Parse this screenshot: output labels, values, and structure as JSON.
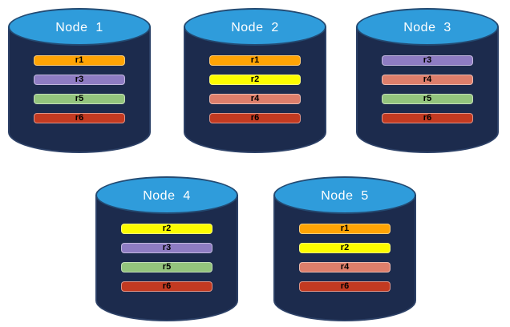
{
  "diagram": {
    "kind": "database-replica-distribution",
    "colors": {
      "cylinder_body": "#1c2b4d",
      "cylinder_body_stroke": "#2c4066",
      "cylinder_top_fill": "#2f9cdb",
      "cylinder_top_stroke": "#234a72",
      "node_label_text": "#ffffff",
      "bar_text": "#000000"
    },
    "replica_colors": {
      "r1": "#ffa405",
      "r2": "#fcfc00",
      "r3": "#8e7cc3",
      "r4": "#dd7e6b",
      "r5": "#93c47d",
      "r6": "#c33a21"
    },
    "nodes": [
      {
        "label": "Node  1",
        "replicas": [
          "r1",
          "r3",
          "r5",
          "r6"
        ]
      },
      {
        "label": "Node  2",
        "replicas": [
          "r1",
          "r2",
          "r4",
          "r6"
        ]
      },
      {
        "label": "Node  3",
        "replicas": [
          "r3",
          "r4",
          "r5",
          "r6"
        ]
      },
      {
        "label": "Node  4",
        "replicas": [
          "r2",
          "r3",
          "r5",
          "r6"
        ]
      },
      {
        "label": "Node  5",
        "replicas": [
          "r1",
          "r2",
          "r4",
          "r6"
        ]
      }
    ]
  }
}
